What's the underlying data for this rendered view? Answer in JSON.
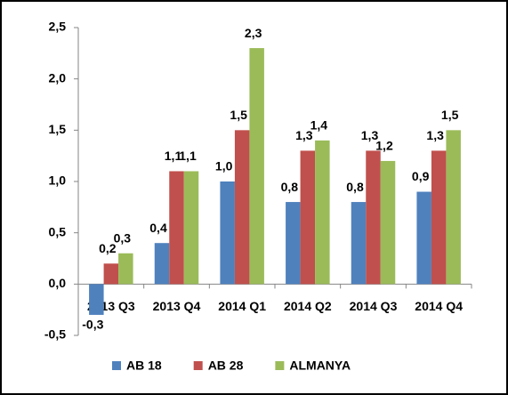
{
  "chart_data": {
    "type": "bar",
    "categories": [
      "2013 Q3",
      "2013 Q4",
      "2014 Q1",
      "2014 Q2",
      "2014 Q3",
      "2014 Q4"
    ],
    "series": [
      {
        "name": "AB 18",
        "color": "#4f81bd",
        "values": [
          -0.3,
          0.4,
          1.0,
          0.8,
          0.8,
          0.9
        ],
        "value_labels": [
          "-0,3",
          "0,4",
          "1,0",
          "0,8",
          "0,8",
          "0,9"
        ]
      },
      {
        "name": "AB 28",
        "color": "#c0504d",
        "values": [
          0.2,
          1.1,
          1.5,
          1.3,
          1.3,
          1.3
        ],
        "value_labels": [
          "0,2",
          "1,1",
          "1,5",
          "1,3",
          "1,3",
          "1,3"
        ]
      },
      {
        "name": "ALMANYA",
        "color": "#9bbb59",
        "values": [
          0.3,
          1.1,
          2.3,
          1.4,
          1.2,
          1.5
        ],
        "value_labels": [
          "0,3",
          "1,1",
          "2,3",
          "1,4",
          "1,2",
          "1,5"
        ]
      }
    ],
    "ylim": [
      -0.5,
      2.5
    ],
    "yticks": [
      {
        "value": -0.5,
        "label": "-0,5"
      },
      {
        "value": 0,
        "label": "0,0"
      },
      {
        "value": 0.5,
        "label": "0,5"
      },
      {
        "value": 1,
        "label": "1,0"
      },
      {
        "value": 1.5,
        "label": "1,5"
      },
      {
        "value": 2,
        "label": "2,0"
      },
      {
        "value": 2.5,
        "label": "2,5"
      }
    ],
    "grid": false,
    "legend": "bottom"
  }
}
